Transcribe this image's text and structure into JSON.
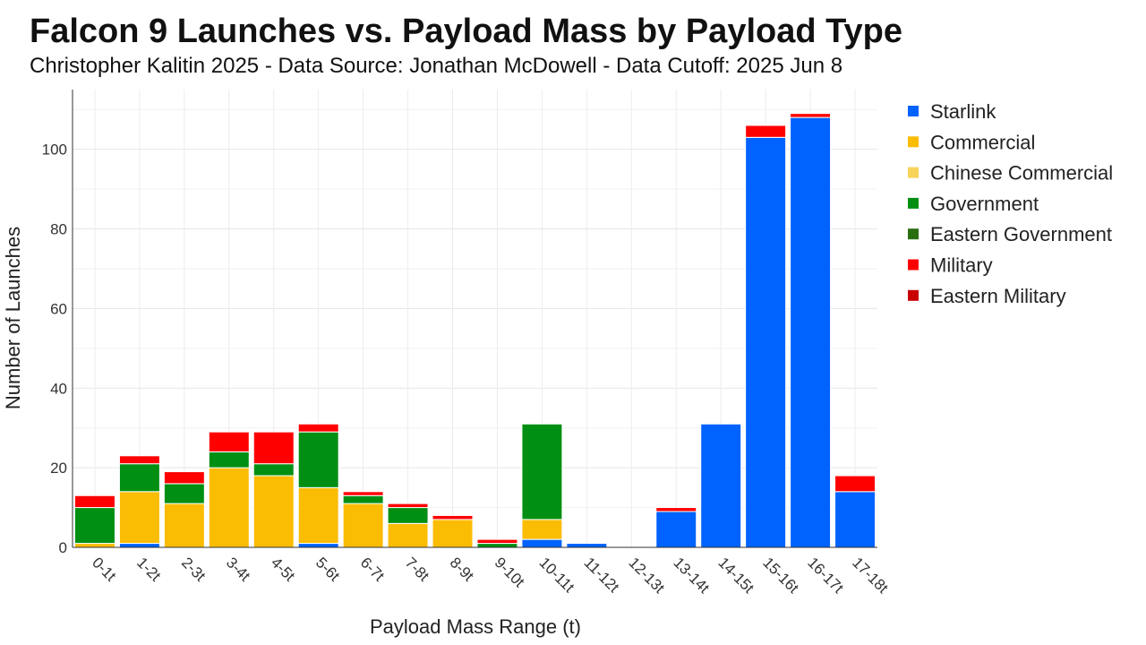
{
  "chart_data": {
    "type": "bar",
    "stacked": true,
    "title": "Falcon 9 Launches vs. Payload Mass by Payload Type",
    "subtitle": "Christopher Kalitin 2025 - Data Source: Jonathan McDowell - Data Cutoff: 2025 Jun 8",
    "xlabel": "Payload Mass Range (t)",
    "ylabel": "Number of Launches",
    "ylim": [
      0,
      115
    ],
    "yticks": [
      0,
      20,
      40,
      60,
      80,
      100
    ],
    "grid": true,
    "legend_position": "right",
    "categories": [
      "0-1t",
      "1-2t",
      "2-3t",
      "3-4t",
      "4-5t",
      "5-6t",
      "6-7t",
      "7-8t",
      "8-9t",
      "9-10t",
      "10-11t",
      "11-12t",
      "12-13t",
      "13-14t",
      "14-15t",
      "15-16t",
      "16-17t",
      "17-18t"
    ],
    "series": [
      {
        "name": "Starlink",
        "color": "#0062ff",
        "values": [
          0,
          1,
          0,
          0,
          0,
          1,
          0,
          0,
          0,
          0,
          2,
          1,
          0,
          9,
          31,
          103,
          108,
          14
        ]
      },
      {
        "name": "Commercial",
        "color": "#fbbc04",
        "values": [
          1,
          13,
          11,
          20,
          18,
          14,
          11,
          6,
          7,
          0,
          5,
          0,
          0,
          0,
          0,
          0,
          0,
          0
        ]
      },
      {
        "name": "Chinese Commercial",
        "color": "#f7d358",
        "values": [
          0,
          0,
          0,
          0,
          0,
          0,
          0,
          0,
          0,
          0,
          0,
          0,
          0,
          0,
          0,
          0,
          0,
          0
        ]
      },
      {
        "name": "Government",
        "color": "#008f12",
        "values": [
          9,
          7,
          5,
          4,
          3,
          14,
          2,
          4,
          0,
          1,
          24,
          0,
          0,
          0,
          0,
          0,
          0,
          0
        ]
      },
      {
        "name": "Eastern Government",
        "color": "#2a6e12",
        "values": [
          0,
          0,
          0,
          0,
          0,
          0,
          0,
          0,
          0,
          0,
          0,
          0,
          0,
          0,
          0,
          0,
          0,
          0
        ]
      },
      {
        "name": "Military",
        "color": "#ff0000",
        "values": [
          3,
          2,
          3,
          5,
          8,
          2,
          1,
          1,
          1,
          1,
          0,
          0,
          0,
          1,
          0,
          3,
          1,
          4
        ]
      },
      {
        "name": "Eastern Military",
        "color": "#c80000",
        "values": [
          0,
          0,
          0,
          0,
          0,
          0,
          0,
          0,
          0,
          0,
          0,
          0,
          0,
          0,
          0,
          0,
          0,
          0
        ]
      }
    ]
  }
}
